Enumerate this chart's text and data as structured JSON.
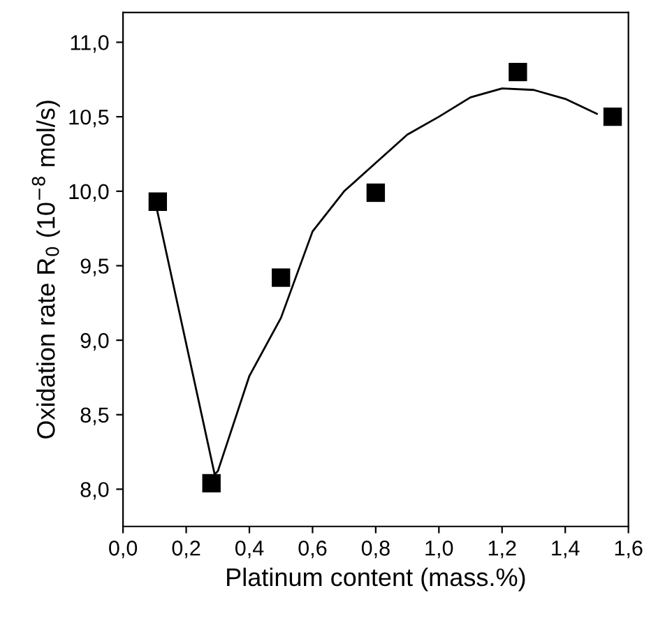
{
  "chart_data": {
    "type": "scatter",
    "xlabel": "Platinum content (mass.%)",
    "ylabel": "Oxidation rate R$_{0}$ (10$^{−8}$ mol/s)",
    "xlim": [
      0.0,
      1.6
    ],
    "ylim": [
      7.75,
      11.2
    ],
    "xticks": [
      {
        "value": 0.0,
        "label": "0,0"
      },
      {
        "value": 0.2,
        "label": "0,2"
      },
      {
        "value": 0.4,
        "label": "0,4"
      },
      {
        "value": 0.6,
        "label": "0,6"
      },
      {
        "value": 0.8,
        "label": "0,8"
      },
      {
        "value": 1.0,
        "label": "1,0"
      },
      {
        "value": 1.2,
        "label": "1,2"
      },
      {
        "value": 1.4,
        "label": "1,4"
      },
      {
        "value": 1.6,
        "label": "1,6"
      }
    ],
    "yticks": [
      {
        "value": 8.0,
        "label": "8,0"
      },
      {
        "value": 8.5,
        "label": "8,5"
      },
      {
        "value": 9.0,
        "label": "9,0"
      },
      {
        "value": 9.5,
        "label": "9,5"
      },
      {
        "value": 10.0,
        "label": "10,0"
      },
      {
        "value": 10.5,
        "label": "10,5"
      },
      {
        "value": 11.0,
        "label": "11,0"
      }
    ],
    "grid": false,
    "legend": false,
    "series": [
      {
        "color": "#000000",
        "marker": "square",
        "x": [
          0.11,
          0.28,
          0.5,
          0.8,
          1.25,
          1.55
        ],
        "values": [
          9.93,
          8.04,
          9.42,
          9.99,
          10.8,
          10.5
        ]
      },
      {
        "type": "line",
        "color": "#000000",
        "line_style": "solid",
        "marker": "none",
        "x": [
          0.1,
          0.29,
          0.3,
          0.4,
          0.5,
          0.6,
          0.7,
          0.8,
          0.9,
          1.0,
          1.1,
          1.2,
          1.3,
          1.4,
          1.5
        ],
        "values": [
          9.95,
          8.1,
          8.12,
          8.76,
          9.15,
          9.73,
          10.0,
          10.19,
          10.38,
          10.5,
          10.63,
          10.69,
          10.68,
          10.62,
          10.52
        ]
      }
    ]
  }
}
